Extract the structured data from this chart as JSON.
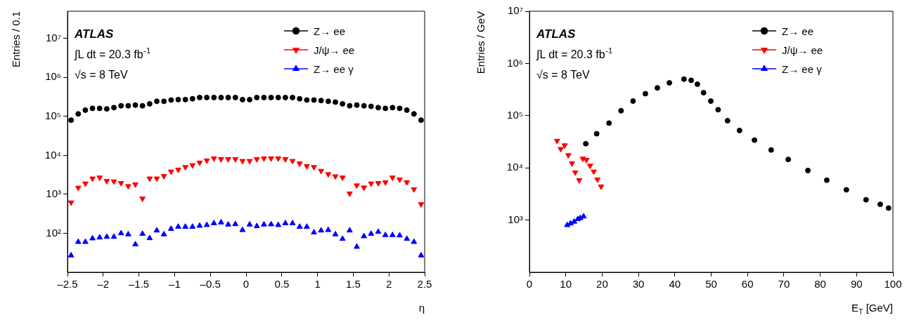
{
  "chart_data": [
    {
      "type": "scatter",
      "xlabel": "η",
      "ylabel": "Entries / 0.1",
      "log": "y",
      "grid": false,
      "legend": "top right",
      "annotations": [
        "ATLAS",
        "∫L dt = 20.3 fb$^{-1}$",
        "√s = 8 TeV"
      ],
      "xlim": [
        -2.5,
        2.5
      ],
      "xticks": [
        {
          "value": -2.5,
          "label": "–2.5"
        },
        {
          "value": -2,
          "label": "–2"
        },
        {
          "value": -1.5,
          "label": "–1.5"
        },
        {
          "value": -1,
          "label": "–1"
        },
        {
          "value": -0.5,
          "label": "–0.5"
        },
        0,
        0.5,
        1,
        1.5,
        2,
        2.5
      ],
      "ylim": [
        10,
        50000000
      ],
      "yticks": [
        {
          "value": 100,
          "label": "10²"
        },
        {
          "value": 1000,
          "label": "10³"
        },
        {
          "value": 10000,
          "label": "10⁴"
        },
        {
          "value": 100000,
          "label": "10⁵"
        },
        {
          "value": 1000000,
          "label": "10⁶"
        },
        {
          "value": 10000000,
          "label": "10⁷"
        }
      ],
      "x": [
        -2.45,
        -2.35,
        -2.25,
        -2.15,
        -2.05,
        -1.95,
        -1.85,
        -1.75,
        -1.65,
        -1.55,
        -1.45,
        -1.35,
        -1.25,
        -1.15,
        -1.05,
        -0.95,
        -0.85,
        -0.75,
        -0.65,
        -0.55,
        -0.45,
        -0.35,
        -0.25,
        -0.15,
        -0.05,
        0.05,
        0.15,
        0.25,
        0.35,
        0.45,
        0.55,
        0.65,
        0.75,
        0.85,
        0.95,
        1.05,
        1.15,
        1.25,
        1.35,
        1.45,
        1.55,
        1.65,
        1.75,
        1.85,
        1.95,
        2.05,
        2.15,
        2.25,
        2.35,
        2.45
      ],
      "series": [
        {
          "name": "Z→ ee",
          "color": "#000000",
          "marker": "circle",
          "values": [
            80000,
            116000,
            145000,
            161000,
            161000,
            156000,
            168000,
            187000,
            187000,
            195000,
            187000,
            210000,
            244000,
            244000,
            263000,
            270000,
            270000,
            284000,
            305000,
            305000,
            305000,
            305000,
            305000,
            305000,
            270000,
            270000,
            305000,
            305000,
            305000,
            305000,
            305000,
            305000,
            284000,
            263000,
            263000,
            255000,
            244000,
            233000,
            210000,
            187000,
            195000,
            187000,
            181000,
            168000,
            161000,
            168000,
            161000,
            145000,
            116000,
            80000
          ]
        },
        {
          "name": "J/ψ→ ee",
          "color": "#ff0000",
          "marker": "triangle-down",
          "values": [
            620,
            1480,
            1900,
            2550,
            2700,
            2200,
            2150,
            1950,
            1630,
            1800,
            780,
            2550,
            2550,
            2950,
            3850,
            4300,
            5000,
            5600,
            6500,
            7400,
            8400,
            8000,
            8000,
            8000,
            7200,
            7200,
            8000,
            8400,
            8400,
            8400,
            8000,
            7200,
            6200,
            5300,
            5000,
            4000,
            3300,
            2900,
            2700,
            1050,
            1700,
            1500,
            1900,
            1950,
            2050,
            2700,
            2400,
            2050,
            1350,
            560
          ]
        },
        {
          "name": "Z→ ee γ",
          "color": "#0000ff",
          "marker": "triangle",
          "values": [
            27,
            60,
            60,
            74,
            78,
            81,
            81,
            100,
            94,
            52,
            97,
            75,
            118,
            94,
            130,
            147,
            147,
            147,
            156,
            163,
            181,
            190,
            168,
            172,
            121,
            168,
            152,
            168,
            170,
            163,
            181,
            181,
            147,
            147,
            105,
            118,
            121,
            94,
            72,
            118,
            45,
            84,
            97,
            109,
            90,
            90,
            88,
            72,
            60,
            27
          ]
        }
      ]
    },
    {
      "type": "scatter",
      "xlabel": "E$_{T}$ [GeV]",
      "ylabel": "Entries / GeV",
      "log": "y",
      "grid": false,
      "legend": "top right",
      "annotations": [
        "ATLAS",
        "∫L dt = 20.3 fb$^{-1}$",
        "√s = 8 TeV"
      ],
      "xlim": [
        0,
        100
      ],
      "xticks": [
        0,
        10,
        20,
        30,
        40,
        50,
        60,
        70,
        80,
        90,
        100
      ],
      "ylim": [
        100,
        10000000
      ],
      "yticks": [
        {
          "value": 1000,
          "label": "10³"
        },
        {
          "value": 10000,
          "label": "10⁴"
        },
        {
          "value": 100000,
          "label": "10⁵"
        },
        {
          "value": 1000000,
          "label": "10⁶"
        },
        {
          "value": 10000000,
          "label": "10⁷"
        }
      ],
      "series": [
        {
          "name": "Z→ ee",
          "color": "#000000",
          "marker": "circle",
          "x": [
            15.5,
            18.5,
            21.9,
            25.2,
            28.5,
            31.9,
            35.2,
            38.5,
            42.5,
            44.5,
            46.2,
            47.9,
            49.9,
            51.9,
            54.5,
            57.8,
            61.9,
            66.5,
            71.2,
            76.6,
            81.8,
            87.2,
            92.6,
            96.5,
            98.8
          ],
          "values": [
            29000,
            45000,
            72000,
            124000,
            190000,
            263000,
            340000,
            425000,
            500000,
            475000,
            400000,
            275000,
            190000,
            130000,
            80000,
            52000,
            34000,
            22000,
            14500,
            8900,
            5800,
            3800,
            2450,
            2000,
            1700
          ]
        },
        {
          "name": "J/ψ→ ee",
          "color": "#ff0000",
          "marker": "triangle-down",
          "x": [
            7.6,
            8.6,
            9.7,
            10.7,
            11.7,
            12.6,
            13.7,
            14.7,
            15.7,
            16.7,
            17.7,
            18.7,
            19.7
          ],
          "values": [
            33000,
            23000,
            27000,
            17500,
            12200,
            8200,
            5800,
            15000,
            14200,
            11000,
            8500,
            6000,
            4400
          ]
        },
        {
          "name": "Z→ ee γ",
          "color": "#0000ff",
          "marker": "triangle",
          "x": [
            10.4,
            11.3,
            12.3,
            13.3,
            14.0,
            14.9
          ],
          "values": [
            800,
            860,
            930,
            1040,
            1090,
            1170
          ]
        }
      ]
    }
  ]
}
